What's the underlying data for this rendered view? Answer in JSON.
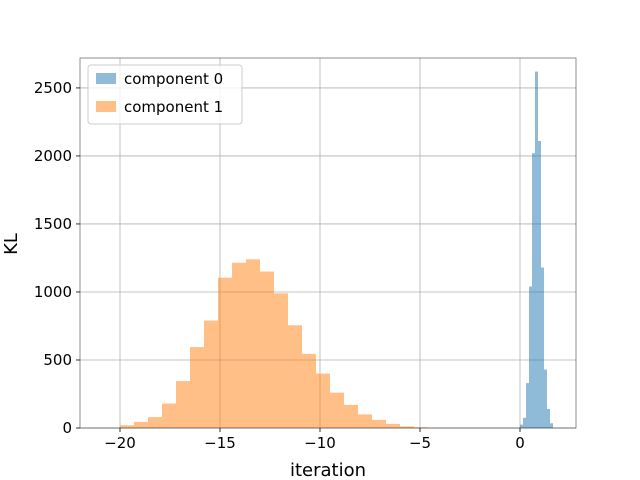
{
  "chart_data": {
    "type": "histogram",
    "xlabel": "iteration",
    "ylabel": "KL",
    "xlim": [
      -22,
      2.8
    ],
    "ylim": [
      0,
      2720
    ],
    "xticks": [
      -20,
      -15,
      -10,
      -5,
      0
    ],
    "xtick_labels": [
      "−20",
      "−15",
      "−10",
      "−5",
      "0"
    ],
    "yticks": [
      0,
      500,
      1000,
      1500,
      2000,
      2500
    ],
    "ytick_labels": [
      "0",
      "500",
      "1000",
      "1500",
      "2000",
      "2500"
    ],
    "grid": true,
    "legend_position": "top-left",
    "series": [
      {
        "name": "component 0",
        "color": "#1f77b4",
        "opacity": 0.5,
        "bins": [
          {
            "x0": 0.0,
            "x1": 0.15,
            "count": 25
          },
          {
            "x0": 0.15,
            "x1": 0.3,
            "count": 75
          },
          {
            "x0": 0.3,
            "x1": 0.45,
            "count": 330
          },
          {
            "x0": 0.45,
            "x1": 0.6,
            "count": 1040
          },
          {
            "x0": 0.6,
            "x1": 0.75,
            "count": 2020
          },
          {
            "x0": 0.75,
            "x1": 0.9,
            "count": 2620
          },
          {
            "x0": 0.9,
            "x1": 1.05,
            "count": 2110
          },
          {
            "x0": 1.05,
            "x1": 1.2,
            "count": 1180
          },
          {
            "x0": 1.2,
            "x1": 1.35,
            "count": 430
          },
          {
            "x0": 1.35,
            "x1": 1.5,
            "count": 140
          },
          {
            "x0": 1.5,
            "x1": 1.65,
            "count": 35
          }
        ]
      },
      {
        "name": "component 1",
        "color": "#ff7f0e",
        "opacity": 0.5,
        "bins": [
          {
            "x0": -20.0,
            "x1": -19.3,
            "count": 20
          },
          {
            "x0": -19.3,
            "x1": -18.6,
            "count": 45
          },
          {
            "x0": -18.6,
            "x1": -17.9,
            "count": 80
          },
          {
            "x0": -17.9,
            "x1": -17.2,
            "count": 180
          },
          {
            "x0": -17.2,
            "x1": -16.5,
            "count": 345
          },
          {
            "x0": -16.5,
            "x1": -15.8,
            "count": 595
          },
          {
            "x0": -15.8,
            "x1": -15.1,
            "count": 790
          },
          {
            "x0": -15.1,
            "x1": -14.4,
            "count": 1105
          },
          {
            "x0": -14.4,
            "x1": -13.7,
            "count": 1215
          },
          {
            "x0": -13.7,
            "x1": -13.0,
            "count": 1240
          },
          {
            "x0": -13.0,
            "x1": -12.3,
            "count": 1150
          },
          {
            "x0": -12.3,
            "x1": -11.6,
            "count": 990
          },
          {
            "x0": -11.6,
            "x1": -10.9,
            "count": 755
          },
          {
            "x0": -10.9,
            "x1": -10.2,
            "count": 545
          },
          {
            "x0": -10.2,
            "x1": -9.5,
            "count": 400
          },
          {
            "x0": -9.5,
            "x1": -8.8,
            "count": 260
          },
          {
            "x0": -8.8,
            "x1": -8.1,
            "count": 170
          },
          {
            "x0": -8.1,
            "x1": -7.4,
            "count": 100
          },
          {
            "x0": -7.4,
            "x1": -6.7,
            "count": 60
          },
          {
            "x0": -6.7,
            "x1": -6.0,
            "count": 30
          },
          {
            "x0": -6.0,
            "x1": -5.3,
            "count": 12
          },
          {
            "x0": -5.3,
            "x1": -4.6,
            "count": 5
          }
        ]
      }
    ]
  }
}
